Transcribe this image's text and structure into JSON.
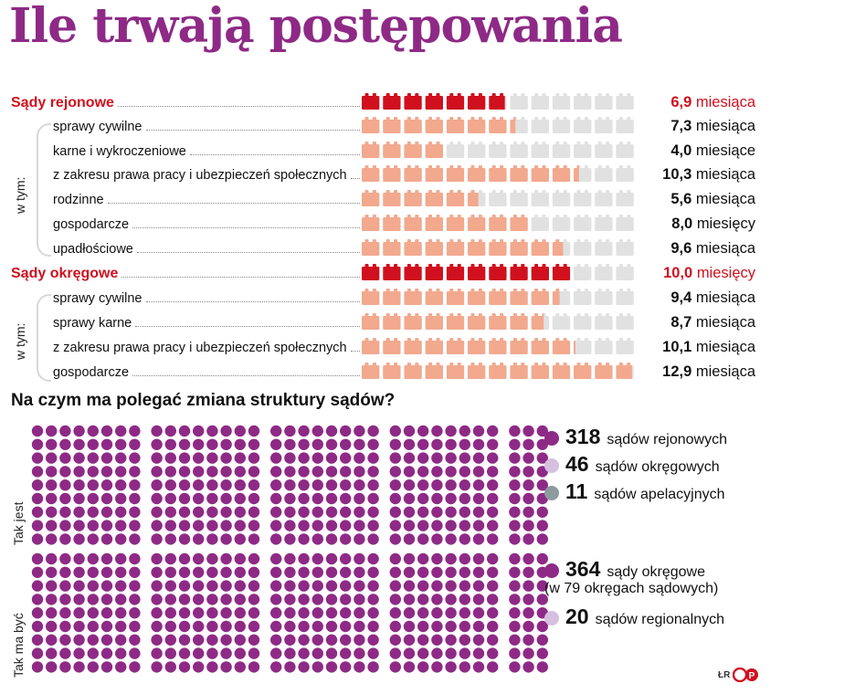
{
  "title": "Ile trwają postępowania",
  "w_tym_label": "w tym:",
  "colors": {
    "title": "#8e2a86",
    "main_filled": "#d0101e",
    "sub_filled": "#f2a98e",
    "empty": "#e1e1e1",
    "rejonowe_dot": "#8e2a86",
    "okregowe_dot": "#d7bfe0",
    "apelacyjne_dot": "#8e9aa0"
  },
  "chart_data": [
    {
      "type": "bar",
      "title": "Ile trwają postępowania",
      "unit": "miesiące",
      "max": 13,
      "categories": [
        "Sądy rejonowe",
        "sprawy cywilne",
        "karne i wykroczeniowe",
        "z zakresu prawa pracy i ubezpieczeń społecznych",
        "rodzinne",
        "gospodarcze",
        "upadłościowe",
        "Sądy okręgowe",
        "sprawy cywilne",
        "sprawy karne",
        "z zakresu prawa pracy i ubezpieczeń społecznych",
        "gospodarcze"
      ],
      "values": [
        6.9,
        7.3,
        4.0,
        10.3,
        5.6,
        8.0,
        9.6,
        10.0,
        9.4,
        8.7,
        10.1,
        12.9
      ],
      "rows": [
        {
          "label": "Sądy rejonowe",
          "main": true,
          "value": 6.9,
          "num": "6,9",
          "unit": "miesiąca"
        },
        {
          "label": "sprawy cywilne",
          "main": false,
          "value": 7.3,
          "num": "7,3",
          "unit": "miesiąca"
        },
        {
          "label": "karne i wykroczeniowe",
          "main": false,
          "value": 4.0,
          "num": "4,0",
          "unit": "miesiące"
        },
        {
          "label": "z zakresu prawa pracy i ubezpieczeń społecznych",
          "main": false,
          "value": 10.3,
          "num": "10,3",
          "unit": "miesiąca"
        },
        {
          "label": "rodzinne",
          "main": false,
          "value": 5.6,
          "num": "5,6",
          "unit": "miesiąca"
        },
        {
          "label": "gospodarcze",
          "main": false,
          "value": 8.0,
          "num": "8,0",
          "unit": "miesięcy"
        },
        {
          "label": "upadłościowe",
          "main": false,
          "value": 9.6,
          "num": "9,6",
          "unit": "miesiąca"
        },
        {
          "label": "Sądy okręgowe",
          "main": true,
          "value": 10.0,
          "num": "10,0",
          "unit": "miesięcy"
        },
        {
          "label": "sprawy cywilne",
          "main": false,
          "value": 9.4,
          "num": "9,4",
          "unit": "miesiąca"
        },
        {
          "label": "sprawy karne",
          "main": false,
          "value": 8.7,
          "num": "8,7",
          "unit": "miesiąca"
        },
        {
          "label": "z zakresu prawa pracy i ubezpieczeń społecznych",
          "main": false,
          "value": 10.1,
          "num": "10,1",
          "unit": "miesiąca"
        },
        {
          "label": "gospodarcze",
          "main": false,
          "value": 12.9,
          "num": "12,9",
          "unit": "miesiąca"
        }
      ]
    },
    {
      "type": "dot-matrix",
      "title": "Na czym ma polegać zmiana struktury sądów?",
      "groups": [
        {
          "label": "Tak jest",
          "series": [
            {
              "name": "sądów rejonowych",
              "value": 318,
              "num": "318",
              "color": "#8e2a86"
            },
            {
              "name": "sądów okręgowych",
              "value": 46,
              "num": "46",
              "color": "#d7bfe0"
            },
            {
              "name": "sądów apelacyjnych",
              "value": 11,
              "num": "11",
              "color": "#8e9aa0"
            }
          ]
        },
        {
          "label": "Tak ma być",
          "series": [
            {
              "name": "sądy okręgowe",
              "note": "(w 79 okręgach sądowych)",
              "value": 364,
              "num": "364",
              "color": "#8e2a86"
            },
            {
              "name": "sądów regionalnych",
              "value": 20,
              "num": "20",
              "color": "#d7bfe0"
            }
          ]
        }
      ]
    }
  ],
  "section2_title": "Na czym ma polegać zmiana struktury sądów?",
  "footer": {
    "credit": "ŁR",
    "logo": "GP"
  }
}
